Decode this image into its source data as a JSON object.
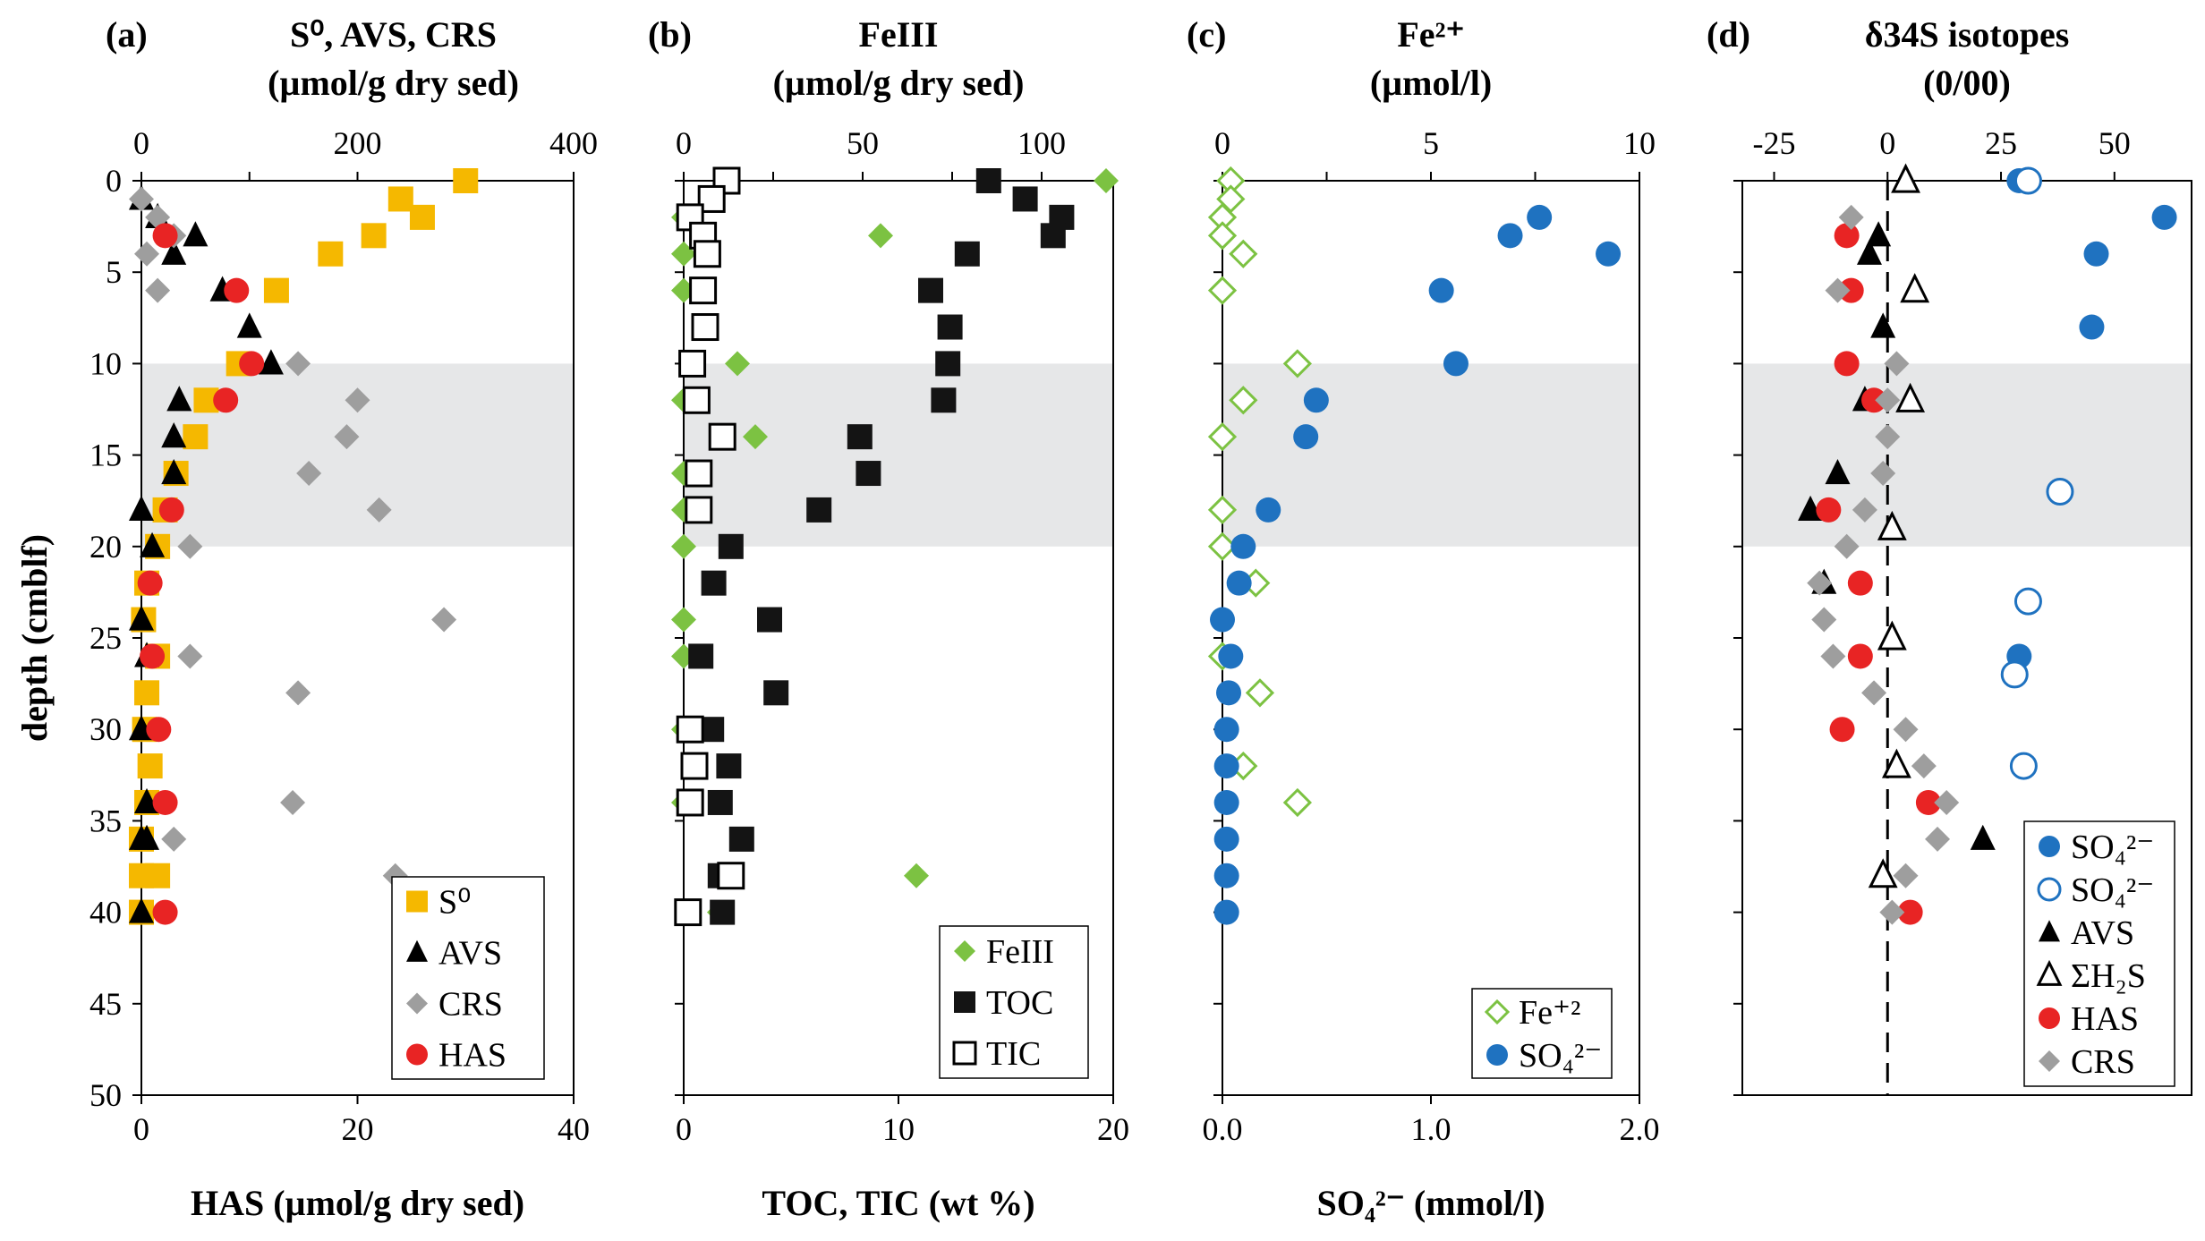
{
  "chart_data": [
    {
      "type": "scatter",
      "panel": "(a)",
      "title_lines": [
        "S⁰, AVS, CRS",
        "(µmol/g dry sed)"
      ],
      "xlabel_bottom": "HAS (µmol/g dry sed)",
      "ylabel": "depth (cmblf)",
      "top_axis": {
        "range": [
          0,
          400
        ],
        "ticks": [
          "0",
          "200",
          "400"
        ],
        "ticks_all": [
          0,
          100,
          200,
          300,
          400
        ],
        "labels": [
          {
            "v": 0,
            "t": "0"
          },
          {
            "v": 200,
            "t": "200"
          },
          {
            "v": 400,
            "t": "400"
          }
        ]
      },
      "bottom_axis": {
        "range": [
          0,
          40
        ],
        "ticks": [
          "0",
          "20",
          "40"
        ],
        "labels": [
          {
            "v": 0,
            "t": "0"
          },
          {
            "v": 20,
            "t": "20"
          },
          {
            "v": 40,
            "t": "40"
          }
        ]
      },
      "y_axis": {
        "range": [
          0,
          50
        ],
        "ticks": [
          "0",
          "5",
          "10",
          "15",
          "20",
          "25",
          "30",
          "35",
          "40",
          "45",
          "50"
        ]
      },
      "shaded_depth": [
        10,
        20
      ],
      "legend": [
        "S⁰",
        "AVS",
        "CRS",
        "HAS"
      ],
      "series": [
        {
          "name": "S⁰",
          "axis": "top",
          "marker": "square",
          "color": "#f5b800",
          "x": [
            300,
            240,
            260,
            215,
            175,
            125,
            90,
            60,
            50,
            32,
            22,
            15,
            5,
            2,
            15,
            5,
            3,
            8,
            5,
            0,
            0,
            15,
            0
          ],
          "y": [
            0,
            1,
            2,
            3,
            4,
            6,
            10,
            12,
            14,
            16,
            18,
            20,
            22,
            24,
            26,
            28,
            30,
            32,
            34,
            36,
            38,
            38,
            40
          ]
        },
        {
          "name": "AVS",
          "axis": "top",
          "marker": "triangle",
          "color": "#000000",
          "x": [
            0,
            15,
            50,
            30,
            75,
            100,
            120,
            35,
            30,
            30,
            0,
            10,
            0,
            5,
            0,
            5,
            0,
            5,
            0
          ],
          "y": [
            1,
            2,
            3,
            4,
            6,
            8,
            10,
            12,
            14,
            16,
            18,
            20,
            24,
            26,
            30,
            34,
            36,
            36,
            40
          ]
        },
        {
          "name": "CRS",
          "axis": "top",
          "marker": "diamond",
          "color": "#9e9e9e",
          "x": [
            0,
            15,
            30,
            5,
            15,
            145,
            200,
            190,
            155,
            220,
            45,
            280,
            45,
            145,
            140,
            30,
            235
          ],
          "y": [
            1,
            2,
            3,
            4,
            6,
            10,
            12,
            14,
            16,
            18,
            20,
            24,
            26,
            28,
            34,
            36,
            38
          ]
        },
        {
          "name": "HAS",
          "axis": "bottom",
          "marker": "circle",
          "color": "#e82424",
          "x": [
            2.2,
            8.8,
            10.2,
            7.8,
            2.8,
            0.8,
            1.0,
            1.6,
            2.2,
            2.2
          ],
          "y": [
            3,
            6,
            10,
            12,
            18,
            22,
            26,
            30,
            34,
            40
          ]
        }
      ]
    },
    {
      "type": "scatter",
      "panel": "(b)",
      "title_lines": [
        "FeIII",
        "(µmol/g dry sed)"
      ],
      "xlabel_bottom": "TOC, TIC (wt %)",
      "top_axis": {
        "range": [
          0,
          120
        ],
        "ticks": [
          "0",
          "50",
          "100"
        ],
        "ticks_all": [
          0,
          25,
          50,
          75,
          100
        ],
        "labels": [
          {
            "v": 0,
            "t": "0"
          },
          {
            "v": 50,
            "t": "50"
          },
          {
            "v": 100,
            "t": "100"
          }
        ]
      },
      "bottom_axis": {
        "range": [
          0,
          20
        ],
        "ticks": [
          "0",
          "10",
          "20"
        ],
        "labels": [
          {
            "v": 0,
            "t": "0"
          },
          {
            "v": 10,
            "t": "10"
          },
          {
            "v": 20,
            "t": "20"
          }
        ]
      },
      "y_axis": {
        "range": [
          0,
          50
        ]
      },
      "shaded_depth": [
        10,
        20
      ],
      "legend": [
        "FeIII",
        "TOC",
        "TIC"
      ],
      "series": [
        {
          "name": "FeIII",
          "axis": "top",
          "marker": "diamond",
          "color": "#7cc242",
          "x": [
            118,
            0,
            55,
            0,
            0,
            15,
            0,
            20,
            0,
            0,
            0,
            0,
            0,
            0,
            0,
            65,
            10
          ],
          "y": [
            0,
            2,
            3,
            4,
            6,
            10,
            12,
            14,
            16,
            18,
            20,
            24,
            26,
            30,
            34,
            38,
            40
          ]
        },
        {
          "name": "TOC",
          "axis": "bottom",
          "marker": "square",
          "color": "#141414",
          "x": [
            14.2,
            15.9,
            17.6,
            17.2,
            13.2,
            11.5,
            12.4,
            12.3,
            12.1,
            8.2,
            8.6,
            6.3,
            2.2,
            1.4,
            4.0,
            0.8,
            4.3,
            1.3,
            2.1,
            1.7,
            2.7,
            1.7,
            1.8
          ],
          "y": [
            0,
            1,
            2,
            3,
            4,
            6,
            8,
            10,
            12,
            14,
            16,
            18,
            20,
            22,
            24,
            26,
            28,
            30,
            32,
            34,
            36,
            38,
            40
          ]
        },
        {
          "name": "TIC",
          "axis": "bottom",
          "marker": "square-open",
          "color": "#000000",
          "x": [
            2.0,
            1.3,
            0.3,
            0.9,
            1.1,
            0.9,
            1.0,
            0.4,
            0.6,
            1.8,
            0.7,
            0.7,
            0.3,
            0.5,
            0.3,
            2.2,
            0.2
          ],
          "y": [
            0,
            1,
            2,
            3,
            4,
            6,
            8,
            10,
            12,
            14,
            16,
            18,
            30,
            32,
            34,
            38,
            40
          ]
        }
      ]
    },
    {
      "type": "scatter",
      "panel": "(c)",
      "title_lines": [
        "Fe²⁺",
        "(µmol/l)"
      ],
      "xlabel_bottom": "SO₄²⁻ (mmol/l)",
      "top_axis": {
        "range": [
          0,
          10
        ],
        "ticks": [
          "0",
          "5",
          "10"
        ],
        "ticks_all": [
          0,
          2.5,
          5,
          7.5,
          10
        ],
        "labels": [
          {
            "v": 0,
            "t": "0"
          },
          {
            "v": 5,
            "t": "5"
          },
          {
            "v": 10,
            "t": "10"
          }
        ]
      },
      "bottom_axis": {
        "range": [
          0,
          2
        ],
        "ticks": [
          "0.0",
          "1.0",
          "2.0"
        ],
        "labels": [
          {
            "v": 0,
            "t": "0.0"
          },
          {
            "v": 1,
            "t": "1.0"
          },
          {
            "v": 2,
            "t": "2.0"
          }
        ]
      },
      "y_axis": {
        "range": [
          0,
          50
        ]
      },
      "shaded_depth": [
        10,
        20
      ],
      "legend": [
        "Fe⁺²",
        "SO₄²⁻"
      ],
      "series": [
        {
          "name": "Fe⁺²",
          "axis": "top",
          "marker": "diamond-open",
          "color": "#7cc242",
          "x": [
            0.2,
            0.2,
            0.0,
            0.0,
            0.5,
            0.0,
            1.8,
            0.5,
            0.0,
            0.0,
            0.0,
            0.8,
            0.0,
            0.9,
            0.5,
            1.8
          ],
          "y": [
            0,
            1,
            2,
            3,
            4,
            6,
            10,
            12,
            14,
            18,
            20,
            22,
            26,
            28,
            32,
            34
          ]
        },
        {
          "name": "SO₄²⁻",
          "axis": "bottom",
          "marker": "circle",
          "color": "#1f72c0",
          "x": [
            1.52,
            1.38,
            1.85,
            1.05,
            1.12,
            0.45,
            0.4,
            0.22,
            0.1,
            0.08,
            0.0,
            0.04,
            0.03,
            0.02,
            0.02,
            0.02,
            0.02,
            0.02,
            0.02
          ],
          "y": [
            2,
            3,
            4,
            6,
            10,
            12,
            14,
            18,
            20,
            22,
            24,
            26,
            28,
            30,
            32,
            34,
            36,
            38,
            40
          ]
        }
      ]
    },
    {
      "type": "scatter",
      "panel": "(d)",
      "title_lines": [
        "δ34S isotopes",
        "(0/00)"
      ],
      "top_axis": {
        "range": [
          -32,
          67
        ],
        "ticks": [
          "-25",
          "0",
          "25",
          "50"
        ],
        "ticks_all": [
          -25,
          0,
          25,
          50
        ],
        "labels": [
          {
            "v": -25,
            "t": "-25"
          },
          {
            "v": 0,
            "t": "0"
          },
          {
            "v": 25,
            "t": "25"
          },
          {
            "v": 50,
            "t": "50"
          }
        ]
      },
      "y_axis": {
        "range": [
          0,
          50
        ]
      },
      "shaded_depth": [
        10,
        20
      ],
      "dashed_zero_line": true,
      "legend": [
        "SO₄²⁻",
        "SO₄²⁻",
        "AVS",
        "ΣH₂S",
        "HAS",
        "CRS"
      ],
      "series": [
        {
          "name": "SO₄²⁻",
          "marker": "circle",
          "color": "#1f72c0",
          "x": [
            29,
            61,
            46,
            45,
            29
          ],
          "y": [
            0,
            2,
            4,
            8,
            26
          ]
        },
        {
          "name": "SO₄²⁻",
          "marker": "circle-open",
          "color": "#1f72c0",
          "x": [
            31,
            38,
            31,
            28,
            30
          ],
          "y": [
            0,
            17,
            23,
            27,
            32
          ]
        },
        {
          "name": "AVS",
          "marker": "triangle",
          "color": "#000000",
          "x": [
            -2,
            -4,
            -1,
            -5,
            -11,
            -17,
            -14,
            21
          ],
          "y": [
            3,
            4,
            8,
            12,
            16,
            18,
            22,
            36
          ]
        },
        {
          "name": "ΣH₂S",
          "marker": "triangle-open",
          "color": "#000000",
          "x": [
            4,
            6,
            5,
            1,
            1,
            2,
            -1
          ],
          "y": [
            0,
            6,
            12,
            19,
            25,
            32,
            38
          ]
        },
        {
          "name": "HAS",
          "marker": "circle",
          "color": "#e82424",
          "x": [
            -9,
            -8,
            -9,
            -3,
            -13,
            -6,
            -6,
            -10,
            9,
            5
          ],
          "y": [
            3,
            6,
            10,
            12,
            18,
            22,
            26,
            30,
            34,
            40
          ]
        },
        {
          "name": "CRS",
          "marker": "diamond",
          "color": "#9e9e9e",
          "x": [
            -8,
            -11,
            2,
            0,
            0,
            -1,
            -5,
            -9,
            -15,
            -14,
            -12,
            -3,
            4,
            8,
            13,
            11,
            4,
            1
          ],
          "y": [
            2,
            6,
            10,
            12,
            14,
            16,
            18,
            20,
            22,
            24,
            26,
            28,
            30,
            32,
            34,
            36,
            38,
            40
          ]
        }
      ]
    }
  ]
}
